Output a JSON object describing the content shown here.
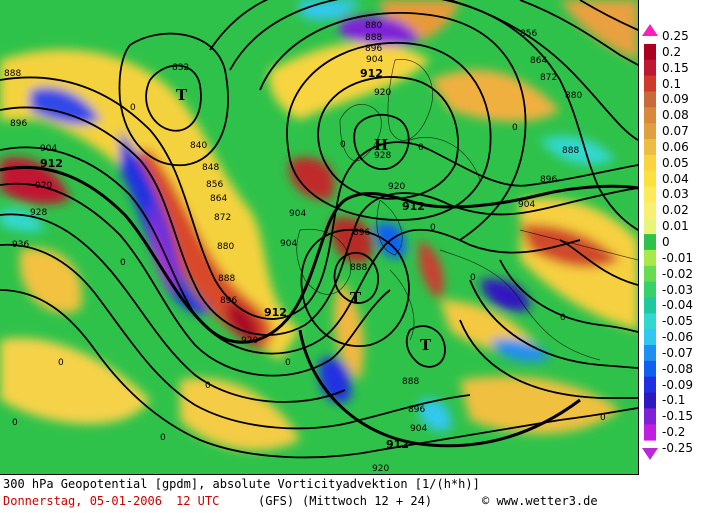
{
  "map": {
    "centers": [
      {
        "id": "low-atlantic",
        "letter": "T"
      },
      {
        "id": "high-scandinavia",
        "letter": "H"
      },
      {
        "id": "low-western-med",
        "letter": "T"
      },
      {
        "id": "low-central-med",
        "letter": "T"
      }
    ],
    "contour_labels": [
      "832",
      "840",
      "848",
      "856",
      "864",
      "872",
      "880",
      "888",
      "896",
      "904",
      "912",
      "920",
      "928",
      "936"
    ],
    "zero_label": "0"
  },
  "legend": {
    "values": [
      "0.25",
      "0.2",
      "0.15",
      "0.1",
      "0.09",
      "0.08",
      "0.07",
      "0.06",
      "0.05",
      "0.04",
      "0.03",
      "0.02",
      "0.01",
      "0",
      "-0.01",
      "-0.02",
      "-0.03",
      "-0.04",
      "-0.05",
      "-0.06",
      "-0.07",
      "-0.08",
      "-0.09",
      "-0.1",
      "-0.15",
      "-0.2",
      "-0.25"
    ],
    "colors": [
      "#ff1fb8",
      "#aa0022",
      "#c01830",
      "#d03a2a",
      "#c86a3a",
      "#d88a3a",
      "#e0a040",
      "#ecbc44",
      "#f8d440",
      "#fce040",
      "#fdea5a",
      "#f8f070",
      "#e8f57a",
      "#2fc24a",
      "#a8e84a",
      "#68dc50",
      "#38d06a",
      "#20c8a0",
      "#30d8d0",
      "#30c8f0",
      "#2090f0",
      "#1060f0",
      "#2030e0",
      "#3018c0",
      "#8020d8",
      "#c01ee0",
      "#b82ad8"
    ]
  },
  "footer": {
    "line1": "300 hPa Geopotential [gpdm], absolute Vorticityadvektion [1/(h*h)]",
    "date": "Donnerstag, 05-01-2006",
    "time": "12 UTC",
    "model": "(GFS)",
    "forecast": "(Mittwoch 12 + 24)",
    "credit": "© www.wetter3.de"
  }
}
